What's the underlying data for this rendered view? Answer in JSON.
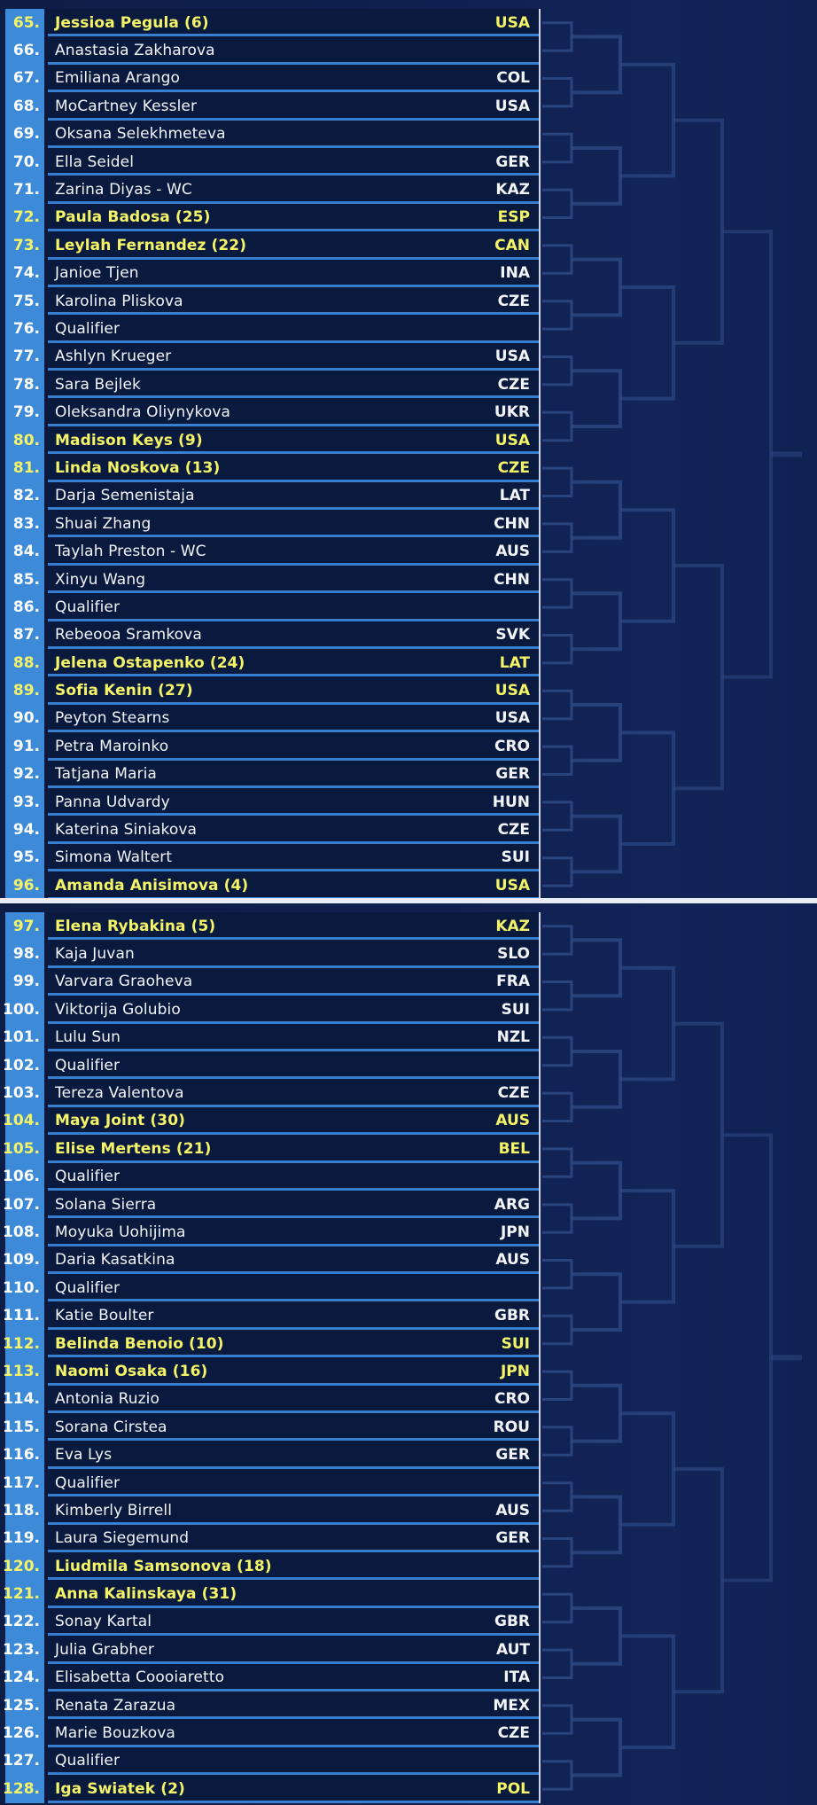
{
  "top_section": {
    "players": [
      {
        "num": "65.",
        "name": "Jessioa Pegula (6)",
        "country": "USA",
        "seeded": true
      },
      {
        "num": "66.",
        "name": "Anastasia Zakharova",
        "country": "",
        "seeded": false
      },
      {
        "num": "67.",
        "name": "Emiliana Arango",
        "country": "COL",
        "seeded": false
      },
      {
        "num": "68.",
        "name": "MoCartney Kessler",
        "country": "USA",
        "seeded": false
      },
      {
        "num": "69.",
        "name": "Oksana Selekhmeteva",
        "country": "",
        "seeded": false
      },
      {
        "num": "70.",
        "name": "Ella Seidel",
        "country": "GER",
        "seeded": false
      },
      {
        "num": "71.",
        "name": "Zarina Diyas - WC",
        "country": "KAZ",
        "seeded": false
      },
      {
        "num": "72.",
        "name": "Paula Badosa (25)",
        "country": "ESP",
        "seeded": true
      },
      {
        "num": "73.",
        "name": "Leylah Fernandez (22)",
        "country": "CAN",
        "seeded": true
      },
      {
        "num": "74.",
        "name": "Janioe Tjen",
        "country": "INA",
        "seeded": false
      },
      {
        "num": "75.",
        "name": "Karolina Pliskova",
        "country": "CZE",
        "seeded": false
      },
      {
        "num": "76.",
        "name": "Qualifier",
        "country": "",
        "seeded": false
      },
      {
        "num": "77.",
        "name": "Ashlyn Krueger",
        "country": "USA",
        "seeded": false
      },
      {
        "num": "78.",
        "name": "Sara Bejlek",
        "country": "CZE",
        "seeded": false
      },
      {
        "num": "79.",
        "name": "Oleksandra Oliynykova",
        "country": "UKR",
        "seeded": false
      },
      {
        "num": "80.",
        "name": "Madison Keys (9)",
        "country": "USA",
        "seeded": true
      },
      {
        "num": "81.",
        "name": "Linda Noskova (13)",
        "country": "CZE",
        "seeded": true
      },
      {
        "num": "82.",
        "name": "Darja Semenistaja",
        "country": "LAT",
        "seeded": false
      },
      {
        "num": "83.",
        "name": "Shuai Zhang",
        "country": "CHN",
        "seeded": false
      },
      {
        "num": "84.",
        "name": "Taylah Preston - WC",
        "country": "AUS",
        "seeded": false
      },
      {
        "num": "85.",
        "name": "Xinyu Wang",
        "country": "CHN",
        "seeded": false
      },
      {
        "num": "86.",
        "name": "Qualifier",
        "country": "",
        "seeded": false
      },
      {
        "num": "87.",
        "name": "Rebeooa Sramkova",
        "country": "SVK",
        "seeded": false
      },
      {
        "num": "88.",
        "name": "Jelena Ostapenko (24)",
        "country": "LAT",
        "seeded": true
      },
      {
        "num": "89.",
        "name": "Sofia Kenin (27)",
        "country": "USA",
        "seeded": true
      },
      {
        "num": "90.",
        "name": "Peyton Stearns",
        "country": "USA",
        "seeded": false
      },
      {
        "num": "91.",
        "name": "Petra Maroinko",
        "country": "CRO",
        "seeded": false
      },
      {
        "num": "92.",
        "name": "Tatjana Maria",
        "country": "GER",
        "seeded": false
      },
      {
        "num": "93.",
        "name": "Panna Udvardy",
        "country": "HUN",
        "seeded": false
      },
      {
        "num": "94.",
        "name": "Katerina Siniakova",
        "country": "CZE",
        "seeded": false
      },
      {
        "num": "95.",
        "name": "Simona Waltert",
        "country": "SUI",
        "seeded": false
      },
      {
        "num": "96.",
        "name": "Amanda Anisimova (4)",
        "country": "USA",
        "seeded": true
      }
    ]
  },
  "bottom_section": {
    "players": [
      {
        "num": "97.",
        "name": "Elena Rybakina (5)",
        "country": "KAZ",
        "seeded": true
      },
      {
        "num": "98.",
        "name": "Kaja Juvan",
        "country": "SLO",
        "seeded": false
      },
      {
        "num": "99.",
        "name": "Varvara Graoheva",
        "country": "FRA",
        "seeded": false
      },
      {
        "num": "100.",
        "name": "Viktorija Golubio",
        "country": "SUI",
        "seeded": false
      },
      {
        "num": "101.",
        "name": "Lulu Sun",
        "country": "NZL",
        "seeded": false
      },
      {
        "num": "102.",
        "name": "Qualifier",
        "country": "",
        "seeded": false
      },
      {
        "num": "103.",
        "name": "Tereza Valentova",
        "country": "CZE",
        "seeded": false
      },
      {
        "num": "104.",
        "name": "Maya Joint (30)",
        "country": "AUS",
        "seeded": true
      },
      {
        "num": "105.",
        "name": "Elise Mertens (21)",
        "country": "BEL",
        "seeded": true
      },
      {
        "num": "106.",
        "name": "Qualifier",
        "country": "",
        "seeded": false
      },
      {
        "num": "107.",
        "name": "Solana Sierra",
        "country": "ARG",
        "seeded": false
      },
      {
        "num": "108.",
        "name": "Moyuka Uohijima",
        "country": "JPN",
        "seeded": false
      },
      {
        "num": "109.",
        "name": "Daria Kasatkina",
        "country": "AUS",
        "seeded": false
      },
      {
        "num": "110.",
        "name": "Qualifier",
        "country": "",
        "seeded": false
      },
      {
        "num": "111.",
        "name": "Katie Boulter",
        "country": "GBR",
        "seeded": false
      },
      {
        "num": "112.",
        "name": "Belinda Benoio (10)",
        "country": "SUI",
        "seeded": true
      },
      {
        "num": "113.",
        "name": "Naomi Osaka (16)",
        "country": "JPN",
        "seeded": true
      },
      {
        "num": "114.",
        "name": "Antonia Ruzio",
        "country": "CRO",
        "seeded": false
      },
      {
        "num": "115.",
        "name": "Sorana Cirstea",
        "country": "ROU",
        "seeded": false
      },
      {
        "num": "116.",
        "name": "Eva Lys",
        "country": "GER",
        "seeded": false
      },
      {
        "num": "117.",
        "name": "Qualifier",
        "country": "",
        "seeded": false
      },
      {
        "num": "118.",
        "name": "Kimberly Birrell",
        "country": "AUS",
        "seeded": false
      },
      {
        "num": "119.",
        "name": "Laura Siegemund",
        "country": "GER",
        "seeded": false
      },
      {
        "num": "120.",
        "name": "Liudmila Samsonova (18)",
        "country": "",
        "seeded": true
      },
      {
        "num": "121.",
        "name": "Anna Kalinskaya (31)",
        "country": "",
        "seeded": true
      },
      {
        "num": "122.",
        "name": "Sonay Kartal",
        "country": "GBR",
        "seeded": false
      },
      {
        "num": "123.",
        "name": "Julia Grabher",
        "country": "AUT",
        "seeded": false
      },
      {
        "num": "124.",
        "name": "Elisabetta Coooiaretto",
        "country": "ITA",
        "seeded": false
      },
      {
        "num": "125.",
        "name": "Renata Zarazua",
        "country": "MEX",
        "seeded": false
      },
      {
        "num": "126.",
        "name": "Marie Bouzkova",
        "country": "CZE",
        "seeded": false
      },
      {
        "num": "127.",
        "name": "Qualifier",
        "country": "",
        "seeded": false
      },
      {
        "num": "128.",
        "name": "Iga Swiatek (2)",
        "country": "POL",
        "seeded": true
      }
    ]
  },
  "colors": {
    "seed_highlight": "#f4f466",
    "number_cell": "#3c8ad8",
    "underline": "#3a7ed0",
    "bracket_line": "#2f4a85"
  }
}
